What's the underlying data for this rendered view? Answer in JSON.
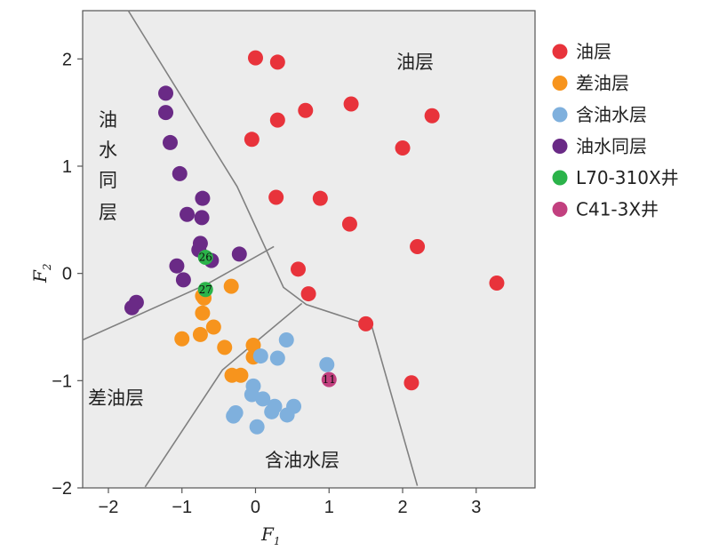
{
  "chart_data": {
    "type": "scatter",
    "xlabel": "F",
    "xlabel_sub": "1",
    "ylabel": "F",
    "ylabel_sub": "2",
    "xlim": [
      -2.35,
      3.8
    ],
    "ylim": [
      -2.0,
      2.45
    ],
    "xticks": [
      -2,
      -1,
      0,
      1,
      2,
      3
    ],
    "yticks": [
      -2,
      -1,
      0,
      1,
      2
    ],
    "grid": false,
    "legend_position": "right",
    "series": [
      {
        "name": "油层",
        "color": "#e8333b",
        "points": [
          [
            0,
            2.01
          ],
          [
            0.3,
            1.97
          ],
          [
            0.3,
            1.43
          ],
          [
            0.68,
            1.52
          ],
          [
            1.3,
            1.58
          ],
          [
            2.4,
            1.47
          ],
          [
            -0.05,
            1.25
          ],
          [
            2,
            1.17
          ],
          [
            0.28,
            0.71
          ],
          [
            0.88,
            0.7
          ],
          [
            1.28,
            0.46
          ],
          [
            2.2,
            0.25
          ],
          [
            0.58,
            0.04
          ],
          [
            0.72,
            -0.19
          ],
          [
            3.28,
            -0.09
          ],
          [
            1.5,
            -0.47
          ],
          [
            2.12,
            -1.02
          ]
        ]
      },
      {
        "name": "差油层",
        "color": "#f7941d",
        "points": [
          [
            -0.72,
            -0.21
          ],
          [
            -0.7,
            -0.23
          ],
          [
            -0.33,
            -0.12
          ],
          [
            -0.72,
            -0.37
          ],
          [
            -0.57,
            -0.5
          ],
          [
            -0.75,
            -0.57
          ],
          [
            -1,
            -0.61
          ],
          [
            -0.42,
            -0.69
          ],
          [
            -0.03,
            -0.67
          ],
          [
            -0.03,
            -0.78
          ],
          [
            -0.32,
            -0.95
          ],
          [
            -0.2,
            -0.95
          ]
        ]
      },
      {
        "name": "含油水层",
        "color": "#7fb0dd",
        "points": [
          [
            0.42,
            -0.62
          ],
          [
            0.07,
            -0.77
          ],
          [
            0.3,
            -0.79
          ],
          [
            0.97,
            -0.85
          ],
          [
            -0.03,
            -1.05
          ],
          [
            -0.05,
            -1.13
          ],
          [
            0.1,
            -1.17
          ],
          [
            0.26,
            -1.24
          ],
          [
            0.22,
            -1.29
          ],
          [
            0.52,
            -1.24
          ],
          [
            0.43,
            -1.32
          ],
          [
            -0.27,
            -1.3
          ],
          [
            -0.3,
            -1.33
          ],
          [
            0.02,
            -1.43
          ]
        ]
      },
      {
        "name": "油水同层",
        "color": "#6a2a86",
        "points": [
          [
            -1.22,
            1.68
          ],
          [
            -1.22,
            1.5
          ],
          [
            -1.16,
            1.22
          ],
          [
            -1.03,
            0.93
          ],
          [
            -0.72,
            0.7
          ],
          [
            -0.93,
            0.55
          ],
          [
            -0.73,
            0.52
          ],
          [
            -0.75,
            0.28
          ],
          [
            -0.77,
            0.22
          ],
          [
            -0.22,
            0.18
          ],
          [
            -0.6,
            0.12
          ],
          [
            -1.07,
            0.07
          ],
          [
            -0.98,
            -0.06
          ],
          [
            -1.62,
            -0.27
          ],
          [
            -1.68,
            -0.32
          ]
        ]
      },
      {
        "name": "L70-310X井",
        "color": "#2bb34a",
        "points": [
          [
            -0.68,
            0.15
          ],
          [
            -0.68,
            -0.15
          ]
        ],
        "labels": [
          "26",
          "27"
        ]
      },
      {
        "name": "C41-3X井",
        "color": "#c2407f",
        "points": [
          [
            1,
            -0.99
          ]
        ],
        "labels": [
          "11"
        ]
      }
    ],
    "region_labels": [
      "油层",
      "油水同层",
      "差油层",
      "含油水层"
    ],
    "boundary_lines": [
      [
        [
          -1.73,
          2.45
        ],
        [
          -0.25,
          0.81
        ],
        [
          0.38,
          -0.13
        ],
        [
          0.69,
          -0.29
        ],
        [
          1.58,
          -0.49
        ],
        [
          2.2,
          -1.98
        ]
      ],
      [
        [
          -2.35,
          -0.62
        ],
        [
          -0.66,
          -0.1
        ],
        [
          0.25,
          0.25
        ]
      ],
      [
        [
          -1.5,
          -1.99
        ],
        [
          -0.45,
          -0.9
        ],
        [
          0.63,
          -0.28
        ]
      ]
    ]
  }
}
